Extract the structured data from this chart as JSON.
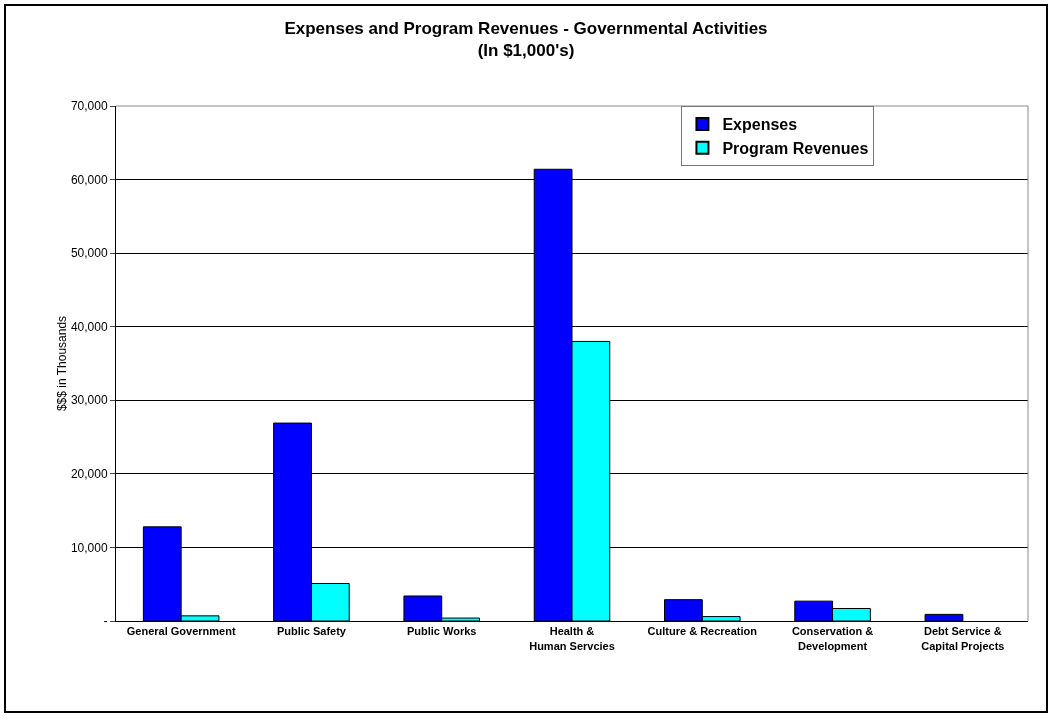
{
  "chart_data": {
    "type": "bar",
    "title": "Expenses and Program Revenues - Governmental Activities\n(In $1,000's)",
    "ylabel": "$$$ in Thousands",
    "categories": [
      "General Government",
      "Public Safety",
      "Public Works",
      "Health & Human Servcies",
      "Culture & Recreation",
      "Conservation & Development",
      "Debt Service & Capital Projects"
    ],
    "series": [
      {
        "name": "Expenses",
        "color": "#0000ff",
        "values": [
          12800,
          26900,
          3400,
          61400,
          2900,
          2700,
          900
        ]
      },
      {
        "name": "Program Revenues",
        "color": "#00ffff",
        "values": [
          700,
          5100,
          400,
          38000,
          600,
          1700,
          0
        ]
      }
    ],
    "ylim": [
      0,
      70000
    ],
    "yticks": [
      {
        "value": 0,
        "label": "-"
      },
      {
        "value": 10000,
        "label": "10,000"
      },
      {
        "value": 20000,
        "label": "20,000"
      },
      {
        "value": 30000,
        "label": "30,000"
      },
      {
        "value": 40000,
        "label": "40,000"
      },
      {
        "value": 50000,
        "label": "50,000"
      },
      {
        "value": 60000,
        "label": "60,000"
      },
      {
        "value": 70000,
        "label": "70,000"
      }
    ],
    "grid": "y",
    "legend": "top right"
  }
}
